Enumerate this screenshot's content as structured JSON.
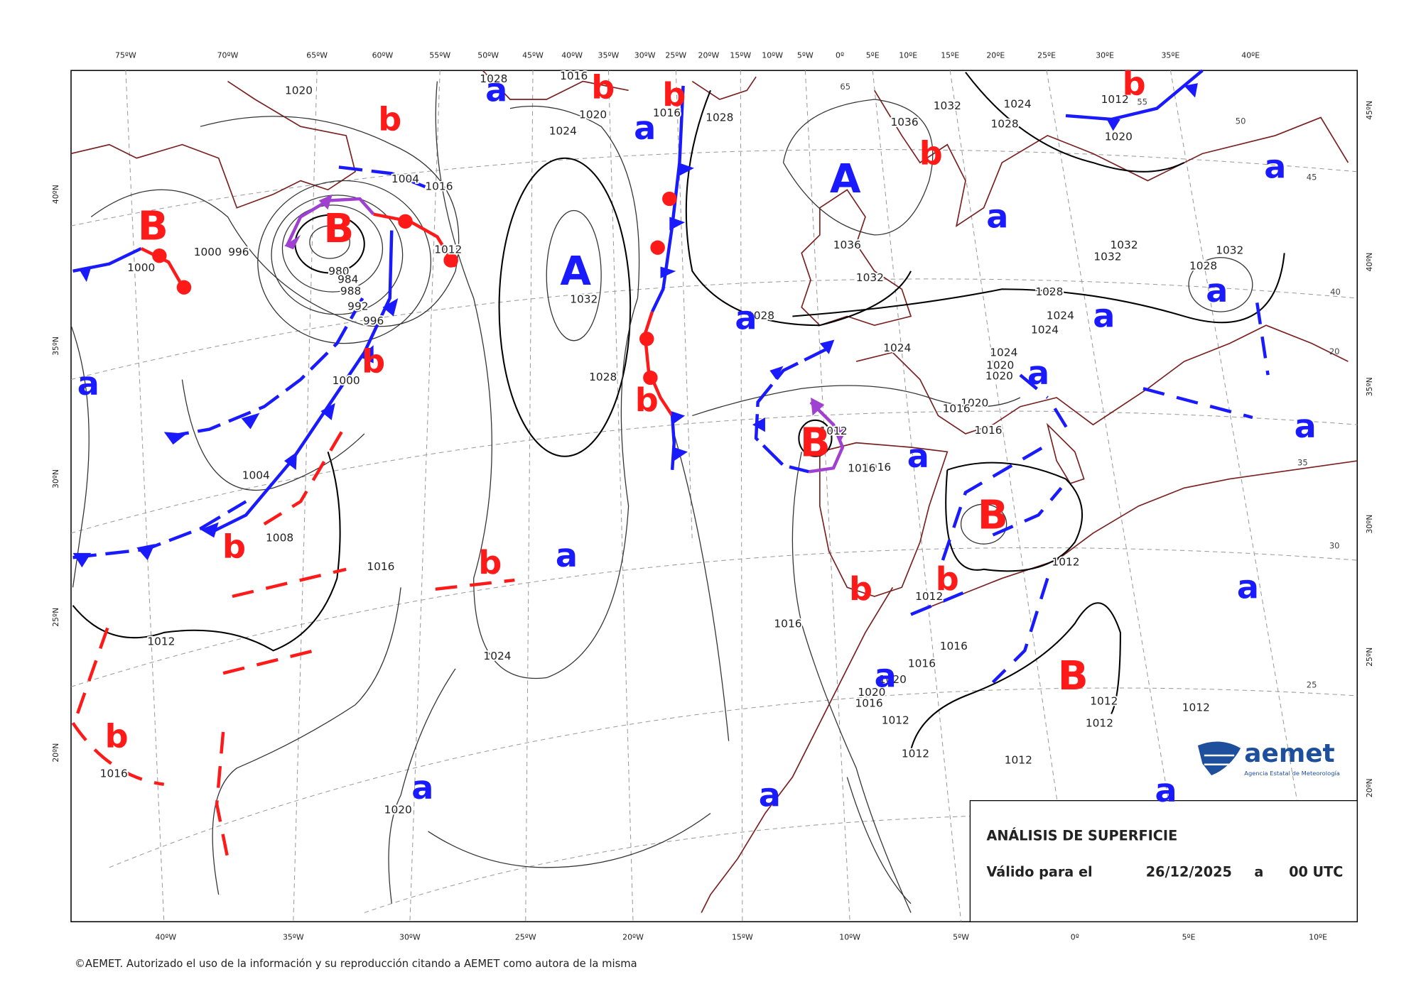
{
  "map": {
    "top_lon_labels": [
      "75ºW",
      "70ºW",
      "65ºW",
      "60ºW",
      "55ºW",
      "50ºW",
      "45ºW",
      "40ºW",
      "35ºW",
      "30ºW",
      "25ºW",
      "20ºW",
      "15ºW",
      "10ºW",
      "5ºW",
      "0º",
      "5ºE",
      "10ºE",
      "15ºE",
      "20ºE",
      "25ºE",
      "30ºE",
      "35ºE",
      "40ºE"
    ],
    "bottom_lon_labels": [
      "40ºW",
      "35ºW",
      "30ºW",
      "25ºW",
      "20ºW",
      "15ºW",
      "10ºW",
      "5ºW",
      "0º",
      "5ºE",
      "10ºE"
    ],
    "left_lat_labels": [
      "40ºN",
      "35ºN",
      "30ºN",
      "25ºN",
      "20ºN"
    ],
    "right_lat_labels": [
      "45ºN",
      "40ºN",
      "35ºN",
      "30ºN",
      "25ºN",
      "20ºN"
    ],
    "high_centers": [
      "A",
      "A"
    ],
    "low_centers": [
      "B",
      "B",
      "B",
      "B",
      "B"
    ],
    "relative_highs": [
      "a",
      "a",
      "a",
      "a",
      "a",
      "a",
      "a",
      "a",
      "a",
      "a",
      "a",
      "a",
      "a",
      "a",
      "a",
      "a",
      "a"
    ],
    "relative_lows": [
      "b",
      "b",
      "b",
      "b",
      "b",
      "b",
      "b",
      "b",
      "b",
      "b",
      "b",
      "b"
    ],
    "isobar_labels": [
      "1020",
      "1024",
      "1020",
      "1016",
      "1028",
      "1028",
      "1016",
      "996",
      "1000",
      "1000",
      "980",
      "984",
      "988",
      "992",
      "996",
      "1000",
      "1004",
      "1016",
      "1012",
      "1032",
      "1028",
      "1028",
      "1036",
      "1032",
      "1032",
      "1028",
      "1036",
      "1024",
      "1032",
      "1032",
      "1028",
      "1032",
      "1028",
      "1024",
      "1024",
      "1024",
      "1024",
      "1020",
      "1020",
      "1020",
      "1016",
      "1016",
      "1012",
      "1016",
      "1016",
      "1004",
      "1008",
      "1016",
      "1012",
      "1024",
      "1016",
      "1016",
      "1016",
      "1020",
      "1020",
      "1016",
      "1012",
      "1012",
      "1012",
      "1012",
      "1012",
      "1012",
      "1012",
      "1012",
      "1016",
      "1020",
      "1012",
      "1020"
    ],
    "graticule_labels": [
      "65",
      "50",
      "55",
      "45",
      "40",
      "35",
      "30",
      "25",
      "20"
    ],
    "title_box": {
      "title": "ANÁLISIS DE SUPERFICIE",
      "valid_label": "Válido para el",
      "date": "26/12/2025",
      "connector": "a",
      "time": "00 UTC"
    },
    "logo": {
      "name": "aemet",
      "subtitle": "Agencia Estatal de Meteorología"
    },
    "footer": "©AEMET. Autorizado el uso de la información y su reproducción citando a AEMET como autora de la misma"
  }
}
